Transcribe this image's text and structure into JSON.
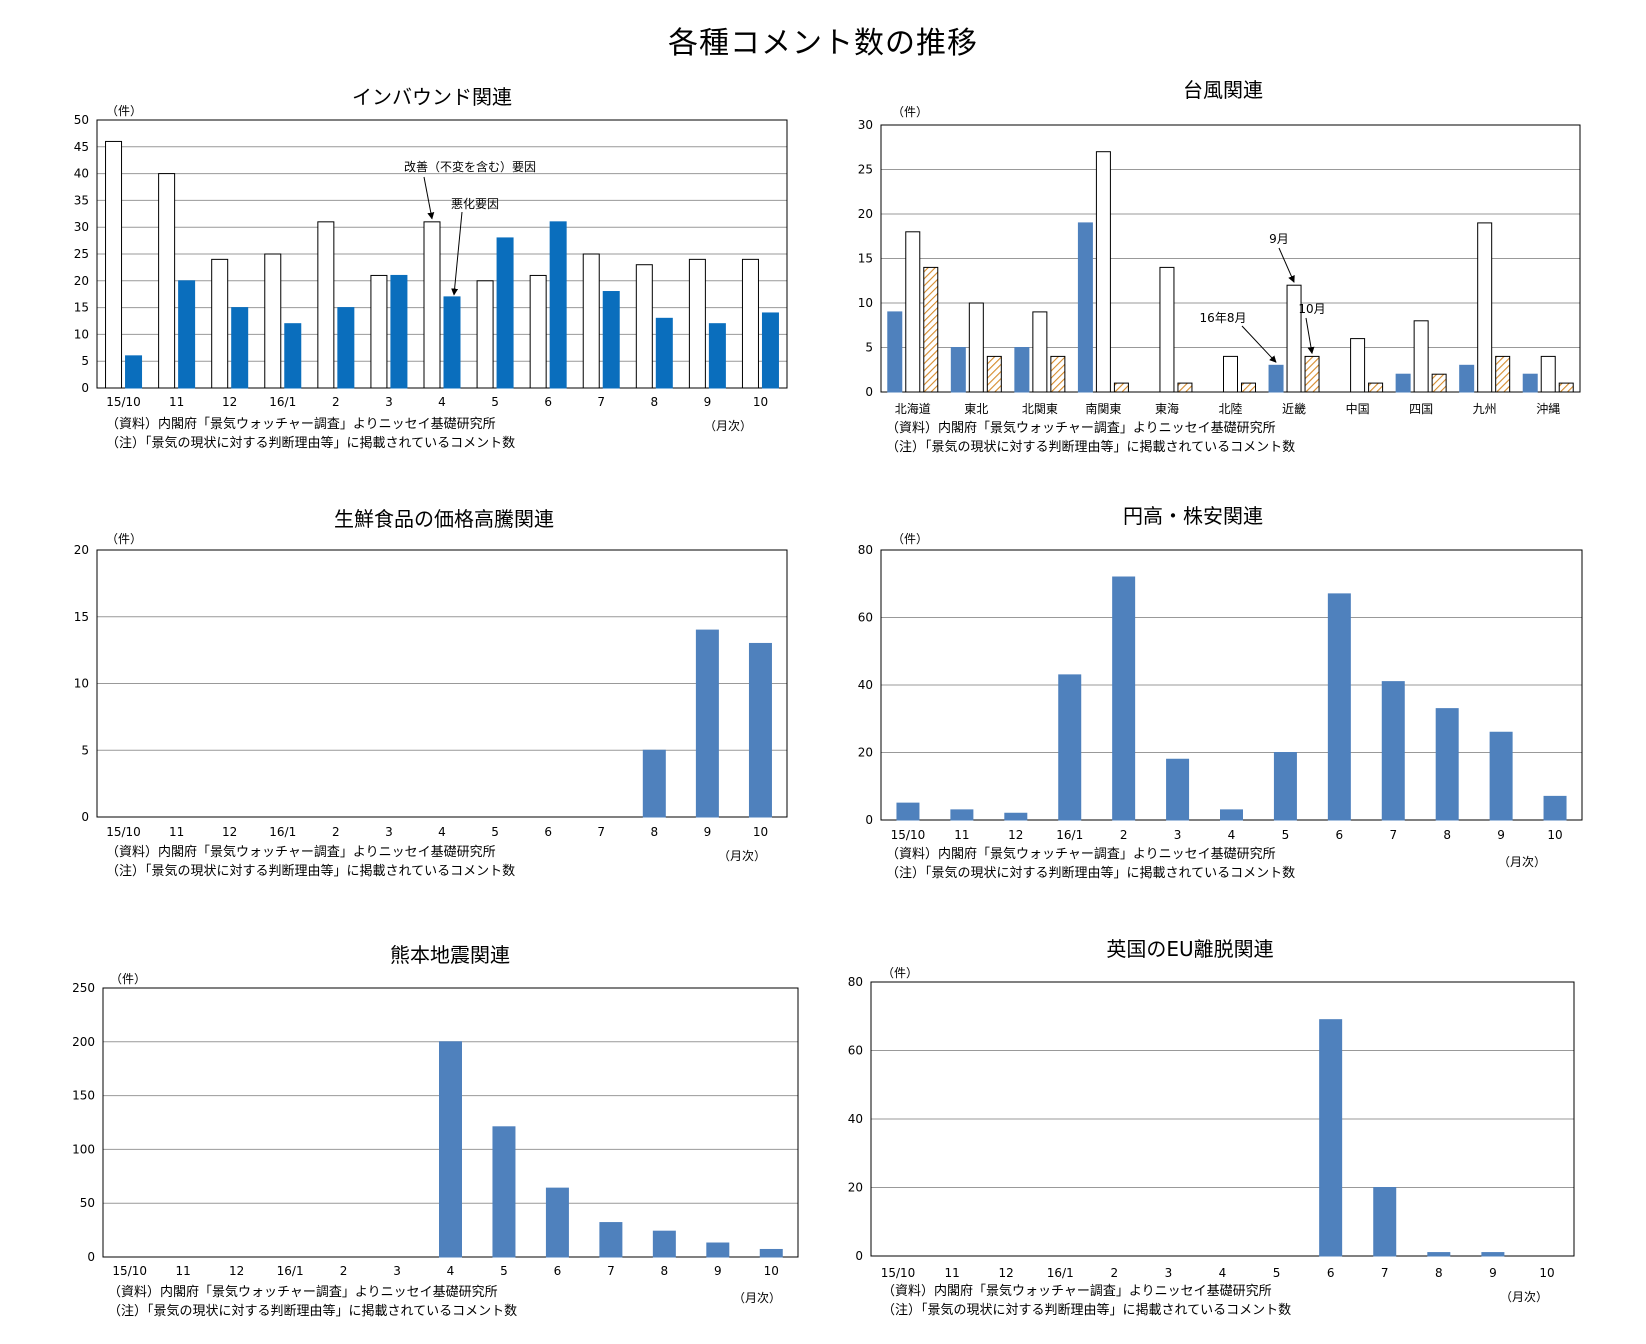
{
  "page_title": "各種コメント数の推移",
  "colors": {
    "blue": "#0a6ebd",
    "steel": "#4f81bd",
    "hatch": "#e0a050",
    "frame": "#000000",
    "grid": "#999999"
  },
  "chart_data": [
    {
      "type": "bar",
      "title": "インバウンド関連",
      "ylabel": "（件）",
      "xlabel": "（月次）",
      "ylim": [
        0,
        50
      ],
      "yticks": [
        0,
        5,
        10,
        15,
        20,
        25,
        30,
        35,
        40,
        45,
        50
      ],
      "categories": [
        "15/10",
        "11",
        "12",
        "16/1",
        "2",
        "3",
        "4",
        "5",
        "6",
        "7",
        "8",
        "9",
        "10"
      ],
      "series": [
        {
          "name": "改善（不変を含む）要因",
          "style": "white",
          "values": [
            46,
            40,
            24,
            25,
            31,
            21,
            31,
            20,
            21,
            25,
            23,
            24,
            24
          ]
        },
        {
          "name": "悪化要因",
          "style": "blue",
          "values": [
            6,
            20,
            15,
            12,
            15,
            21,
            17,
            28,
            31,
            18,
            13,
            12,
            14
          ]
        }
      ],
      "annotations": [
        "改善（不変を含む）要因",
        "悪化要因"
      ],
      "notes": [
        "（資料）内閣府「景気ウォッチャー調査」よりニッセイ基礎研究所",
        "（注）「景気の現状に対する判断理由等」に掲載されているコメント数"
      ]
    },
    {
      "type": "bar",
      "title": "台風関連",
      "ylabel": "（件）",
      "xlabel": "",
      "ylim": [
        0,
        30
      ],
      "yticks": [
        0,
        5,
        10,
        15,
        20,
        25,
        30
      ],
      "categories": [
        "北海道",
        "東北",
        "北関東",
        "南関東",
        "東海",
        "北陸",
        "近畿",
        "中国",
        "四国",
        "九州",
        "沖縄"
      ],
      "series": [
        {
          "name": "16年8月",
          "style": "steel",
          "values": [
            9,
            5,
            5,
            19,
            0,
            0,
            3,
            0,
            2,
            3,
            2
          ]
        },
        {
          "name": "9月",
          "style": "white",
          "values": [
            18,
            10,
            9,
            27,
            14,
            4,
            12,
            6,
            8,
            19,
            4
          ]
        },
        {
          "name": "10月",
          "style": "hatch",
          "values": [
            14,
            4,
            4,
            1,
            1,
            1,
            4,
            1,
            2,
            4,
            1
          ]
        }
      ],
      "annotations": [
        "16年8月",
        "9月",
        "10月"
      ],
      "notes": [
        "（資料）内閣府「景気ウォッチャー調査」よりニッセイ基礎研究所",
        "（注）「景気の現状に対する判断理由等」に掲載されているコメント数"
      ]
    },
    {
      "type": "bar",
      "title": "生鮮食品の価格高騰関連",
      "ylabel": "（件）",
      "xlabel": "（月次）",
      "ylim": [
        0,
        20
      ],
      "yticks": [
        0,
        5,
        10,
        15,
        20
      ],
      "categories": [
        "15/10",
        "11",
        "12",
        "16/1",
        "2",
        "3",
        "4",
        "5",
        "6",
        "7",
        "8",
        "9",
        "10"
      ],
      "series": [
        {
          "style": "steel",
          "values": [
            0,
            0,
            0,
            0,
            0,
            0,
            0,
            0,
            0,
            0,
            5,
            14,
            13
          ]
        }
      ],
      "notes": [
        "（資料）内閣府「景気ウォッチャー調査」よりニッセイ基礎研究所",
        "（注）「景気の現状に対する判断理由等」に掲載されているコメント数"
      ]
    },
    {
      "type": "bar",
      "title": "円高・株安関連",
      "ylabel": "（件）",
      "xlabel": "（月次）",
      "ylim": [
        0,
        80
      ],
      "yticks": [
        0,
        20,
        40,
        60,
        80
      ],
      "categories": [
        "15/10",
        "11",
        "12",
        "16/1",
        "2",
        "3",
        "4",
        "5",
        "6",
        "7",
        "8",
        "9",
        "10"
      ],
      "series": [
        {
          "style": "steel",
          "values": [
            5,
            3,
            2,
            43,
            72,
            18,
            3,
            20,
            67,
            41,
            33,
            26,
            7
          ]
        }
      ],
      "notes": [
        "（資料）内閣府「景気ウォッチャー調査」よりニッセイ基礎研究所",
        "（注）「景気の現状に対する判断理由等」に掲載されているコメント数"
      ]
    },
    {
      "type": "bar",
      "title": "熊本地震関連",
      "ylabel": "（件）",
      "xlabel": "（月次）",
      "ylim": [
        0,
        250
      ],
      "yticks": [
        0,
        50,
        100,
        150,
        200,
        250
      ],
      "categories": [
        "15/10",
        "11",
        "12",
        "16/1",
        "2",
        "3",
        "4",
        "5",
        "6",
        "7",
        "8",
        "9",
        "10"
      ],
      "series": [
        {
          "style": "steel",
          "values": [
            0,
            0,
            0,
            0,
            0,
            0,
            200,
            121,
            64,
            32,
            24,
            13,
            7
          ]
        }
      ],
      "notes": [
        "（資料）内閣府「景気ウォッチャー調査」よりニッセイ基礎研究所",
        "（注）「景気の現状に対する判断理由等」に掲載されているコメント数"
      ]
    },
    {
      "type": "bar",
      "title": "英国のEU離脱関連",
      "ylabel": "（件）",
      "xlabel": "（月次）",
      "ylim": [
        0,
        80
      ],
      "yticks": [
        0,
        20,
        40,
        60,
        80
      ],
      "categories": [
        "15/10",
        "11",
        "12",
        "16/1",
        "2",
        "3",
        "4",
        "5",
        "6",
        "7",
        "8",
        "9",
        "10"
      ],
      "series": [
        {
          "style": "steel",
          "values": [
            0,
            0,
            0,
            0,
            0,
            0,
            0,
            0,
            69,
            20,
            1,
            1,
            0
          ]
        }
      ],
      "notes": [
        "（資料）内閣府「景気ウォッチャー調査」よりニッセイ基礎研究所",
        "（注）「景気の現状に対する判断理由等」に掲載されているコメント数"
      ]
    }
  ]
}
